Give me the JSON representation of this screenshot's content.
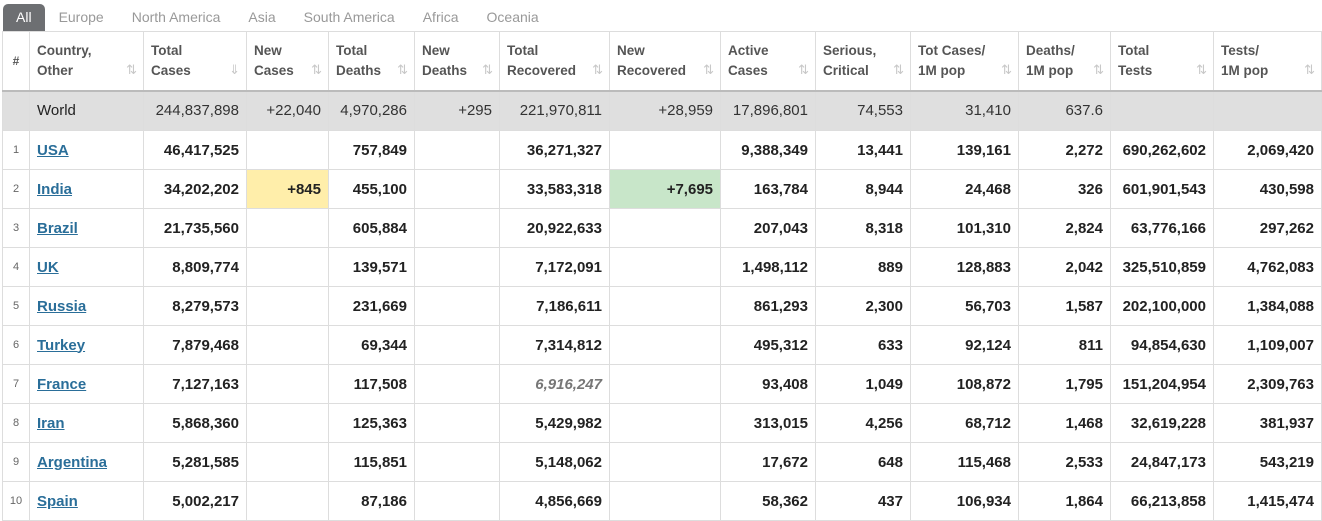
{
  "tabs": [
    {
      "label": "All",
      "active": true
    },
    {
      "label": "Europe",
      "active": false
    },
    {
      "label": "North America",
      "active": false
    },
    {
      "label": "Asia",
      "active": false
    },
    {
      "label": "South America",
      "active": false
    },
    {
      "label": "Africa",
      "active": false
    },
    {
      "label": "Oceania",
      "active": false
    }
  ],
  "columns": [
    {
      "key": "rank",
      "l1": "#",
      "l2": ""
    },
    {
      "key": "country",
      "l1": "Country,",
      "l2": "Other"
    },
    {
      "key": "total_cases",
      "l1": "Total",
      "l2": "Cases"
    },
    {
      "key": "new_cases",
      "l1": "New",
      "l2": "Cases"
    },
    {
      "key": "total_deaths",
      "l1": "Total",
      "l2": "Deaths"
    },
    {
      "key": "new_deaths",
      "l1": "New",
      "l2": "Deaths"
    },
    {
      "key": "total_recovered",
      "l1": "Total",
      "l2": "Recovered"
    },
    {
      "key": "new_recovered",
      "l1": "New",
      "l2": "Recovered"
    },
    {
      "key": "active_cases",
      "l1": "Active",
      "l2": "Cases"
    },
    {
      "key": "serious",
      "l1": "Serious,",
      "l2": "Critical"
    },
    {
      "key": "cases_per_m",
      "l1": "Tot Cases/",
      "l2": "1M pop"
    },
    {
      "key": "deaths_per_m",
      "l1": "Deaths/",
      "l2": "1M pop"
    },
    {
      "key": "total_tests",
      "l1": "Total",
      "l2": "Tests"
    },
    {
      "key": "tests_per_m",
      "l1": "Tests/",
      "l2": "1M pop"
    }
  ],
  "sort_icons": {
    "default": "⇅",
    "active": "⇓"
  },
  "world": {
    "country": "World",
    "total_cases": "244,837,898",
    "new_cases": "+22,040",
    "total_deaths": "4,970,286",
    "new_deaths": "+295",
    "total_recovered": "221,970,811",
    "new_recovered": "+28,959",
    "active_cases": "17,896,801",
    "serious": "74,553",
    "cases_per_m": "31,410",
    "deaths_per_m": "637.6",
    "total_tests": "",
    "tests_per_m": ""
  },
  "rows": [
    {
      "rank": "1",
      "country": "USA",
      "total_cases": "46,417,525",
      "new_cases": "",
      "total_deaths": "757,849",
      "new_deaths": "",
      "total_recovered": "36,271,327",
      "new_recovered": "",
      "active_cases": "9,388,349",
      "serious": "13,441",
      "cases_per_m": "139,161",
      "deaths_per_m": "2,272",
      "total_tests": "690,262,602",
      "tests_per_m": "2,069,420"
    },
    {
      "rank": "2",
      "country": "India",
      "total_cases": "34,202,202",
      "new_cases": "+845",
      "total_deaths": "455,100",
      "new_deaths": "",
      "total_recovered": "33,583,318",
      "new_recovered": "+7,695",
      "active_cases": "163,784",
      "serious": "8,944",
      "cases_per_m": "24,468",
      "deaths_per_m": "326",
      "total_tests": "601,901,543",
      "tests_per_m": "430,598"
    },
    {
      "rank": "3",
      "country": "Brazil",
      "total_cases": "21,735,560",
      "new_cases": "",
      "total_deaths": "605,884",
      "new_deaths": "",
      "total_recovered": "20,922,633",
      "new_recovered": "",
      "active_cases": "207,043",
      "serious": "8,318",
      "cases_per_m": "101,310",
      "deaths_per_m": "2,824",
      "total_tests": "63,776,166",
      "tests_per_m": "297,262"
    },
    {
      "rank": "4",
      "country": "UK",
      "total_cases": "8,809,774",
      "new_cases": "",
      "total_deaths": "139,571",
      "new_deaths": "",
      "total_recovered": "7,172,091",
      "new_recovered": "",
      "active_cases": "1,498,112",
      "serious": "889",
      "cases_per_m": "128,883",
      "deaths_per_m": "2,042",
      "total_tests": "325,510,859",
      "tests_per_m": "4,762,083"
    },
    {
      "rank": "5",
      "country": "Russia",
      "total_cases": "8,279,573",
      "new_cases": "",
      "total_deaths": "231,669",
      "new_deaths": "",
      "total_recovered": "7,186,611",
      "new_recovered": "",
      "active_cases": "861,293",
      "serious": "2,300",
      "cases_per_m": "56,703",
      "deaths_per_m": "1,587",
      "total_tests": "202,100,000",
      "tests_per_m": "1,384,088"
    },
    {
      "rank": "6",
      "country": "Turkey",
      "total_cases": "7,879,468",
      "new_cases": "",
      "total_deaths": "69,344",
      "new_deaths": "",
      "total_recovered": "7,314,812",
      "new_recovered": "",
      "active_cases": "495,312",
      "serious": "633",
      "cases_per_m": "92,124",
      "deaths_per_m": "811",
      "total_tests": "94,854,630",
      "tests_per_m": "1,109,007"
    },
    {
      "rank": "7",
      "country": "France",
      "total_cases": "7,127,163",
      "new_cases": "",
      "total_deaths": "117,508",
      "new_deaths": "",
      "total_recovered": "6,916,247",
      "new_recovered": "",
      "active_cases": "93,408",
      "serious": "1,049",
      "cases_per_m": "108,872",
      "deaths_per_m": "1,795",
      "total_tests": "151,204,954",
      "tests_per_m": "2,309,763"
    },
    {
      "rank": "8",
      "country": "Iran",
      "total_cases": "5,868,360",
      "new_cases": "",
      "total_deaths": "125,363",
      "new_deaths": "",
      "total_recovered": "5,429,982",
      "new_recovered": "",
      "active_cases": "313,015",
      "serious": "4,256",
      "cases_per_m": "68,712",
      "deaths_per_m": "1,468",
      "total_tests": "32,619,228",
      "tests_per_m": "381,937"
    },
    {
      "rank": "9",
      "country": "Argentina",
      "total_cases": "5,281,585",
      "new_cases": "",
      "total_deaths": "115,851",
      "new_deaths": "",
      "total_recovered": "5,148,062",
      "new_recovered": "",
      "active_cases": "17,672",
      "serious": "648",
      "cases_per_m": "115,468",
      "deaths_per_m": "2,533",
      "total_tests": "24,847,173",
      "tests_per_m": "543,219"
    },
    {
      "rank": "10",
      "country": "Spain",
      "total_cases": "5,002,217",
      "new_cases": "",
      "total_deaths": "87,186",
      "new_deaths": "",
      "total_recovered": "4,856,669",
      "new_recovered": "",
      "active_cases": "58,362",
      "serious": "437",
      "cases_per_m": "106,934",
      "deaths_per_m": "1,864",
      "total_tests": "66,213,858",
      "tests_per_m": "1,415,474"
    }
  ],
  "colors": {
    "new_cases_highlight": "#ffeeaa",
    "new_recovered_highlight": "#c8e6c9",
    "link": "#2a6e99",
    "world_row": "#dfdfdf"
  }
}
